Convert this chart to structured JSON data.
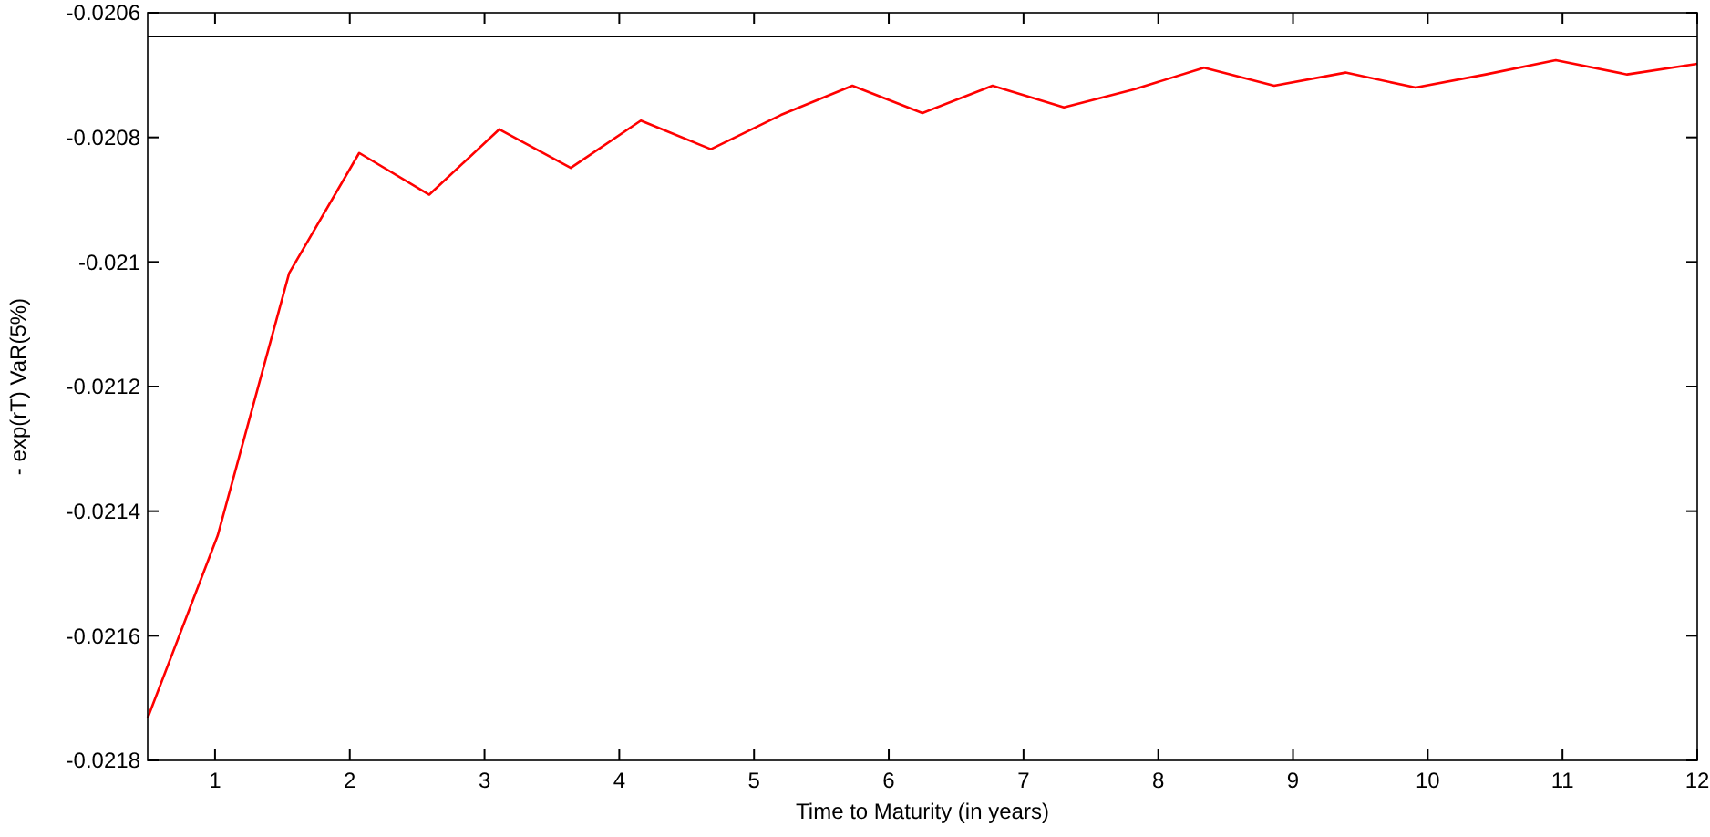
{
  "chart_data": {
    "type": "line",
    "xlabel": "Time to Maturity (in years)",
    "ylabel": "- exp(rT) VaR(5%)",
    "x": [
      0.5,
      1.02,
      1.55,
      2.07,
      2.59,
      3.11,
      3.64,
      4.16,
      4.68,
      5.2,
      5.73,
      6.25,
      6.77,
      7.3,
      7.82,
      8.34,
      8.86,
      9.39,
      9.91,
      10.43,
      10.95,
      11.48,
      12
    ],
    "series": [
      {
        "color": "#ff0000",
        "values": [
          -0.021732,
          -0.021439,
          -0.021018,
          -0.020825,
          -0.020892,
          -0.020787,
          -0.020849,
          -0.020773,
          -0.020819,
          -0.020764,
          -0.020717,
          -0.020761,
          -0.020717,
          -0.020752,
          -0.020723,
          -0.020688,
          -0.020717,
          -0.020696,
          -0.02072,
          -0.020699,
          -0.020676,
          -0.020699,
          -0.020682
        ]
      }
    ],
    "xlim": [
      0.5,
      12
    ],
    "xticks": [
      1,
      2,
      3,
      4,
      5,
      6,
      7,
      8,
      9,
      10,
      11,
      12
    ],
    "ylim": [
      -0.0218,
      -0.0206
    ],
    "yticks": [
      -0.0218,
      -0.0216,
      -0.0214,
      -0.0212,
      -0.021,
      -0.0208,
      -0.0206
    ],
    "ref_lines": [
      {
        "axis": "y",
        "value": -0.020638,
        "color": "#000000"
      }
    ],
    "grid": false
  }
}
